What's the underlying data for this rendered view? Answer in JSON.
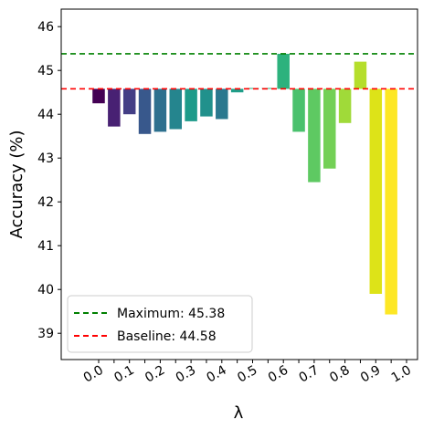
{
  "chart_data": {
    "type": "bar",
    "xlabel": "λ",
    "ylabel": "Accuracy (%)",
    "ylim": [
      38.4,
      46.4
    ],
    "yticks": [
      39,
      40,
      41,
      42,
      43,
      44,
      45,
      46
    ],
    "grid": false,
    "legend_position": "bottom-left",
    "x_tick_labels": [
      "0.0",
      "0.1",
      "0.2",
      "0.3",
      "0.4",
      "0.5",
      "0.6",
      "0.7",
      "0.8",
      "0.9",
      "1.0"
    ],
    "bars": [
      {
        "lambda": 0.0,
        "value": 44.25,
        "color": "#440154"
      },
      {
        "lambda": 0.05,
        "value": 43.72,
        "color": "#482173"
      },
      {
        "lambda": 0.1,
        "value": 44.0,
        "color": "#433e85"
      },
      {
        "lambda": 0.15,
        "value": 43.55,
        "color": "#38588c"
      },
      {
        "lambda": 0.2,
        "value": 43.6,
        "color": "#2d708e"
      },
      {
        "lambda": 0.25,
        "value": 43.66,
        "color": "#25858e"
      },
      {
        "lambda": 0.3,
        "value": 43.84,
        "color": "#1e9b8a"
      },
      {
        "lambda": 0.35,
        "value": 43.95,
        "color": "#21918c"
      },
      {
        "lambda": 0.4,
        "value": 43.89,
        "color": "#2a788e"
      },
      {
        "lambda": 0.45,
        "value": 44.5,
        "color": "#1f9e89"
      },
      {
        "lambda": 0.5,
        "value": 44.6,
        "color": "#2ab07f"
      },
      {
        "lambda": 0.55,
        "value": 44.6,
        "color": "#2eb37c"
      },
      {
        "lambda": 0.6,
        "value": 45.38,
        "color": "#2db27d"
      },
      {
        "lambda": 0.65,
        "value": 43.6,
        "color": "#4ac16d"
      },
      {
        "lambda": 0.7,
        "value": 42.45,
        "color": "#5ec962"
      },
      {
        "lambda": 0.75,
        "value": 42.76,
        "color": "#73d056"
      },
      {
        "lambda": 0.8,
        "value": 43.8,
        "color": "#a0da39"
      },
      {
        "lambda": 0.85,
        "value": 45.2,
        "color": "#b5de2b"
      },
      {
        "lambda": 0.9,
        "value": 39.9,
        "color": "#dde318"
      },
      {
        "lambda": 0.95,
        "value": 39.43,
        "color": "#fde725"
      }
    ],
    "reference_lines": [
      {
        "label": "Maximum: 45.38",
        "value": 45.38,
        "color": "#008000"
      },
      {
        "label": "Baseline: 44.58",
        "value": 44.58,
        "color": "#ff0000"
      }
    ]
  }
}
